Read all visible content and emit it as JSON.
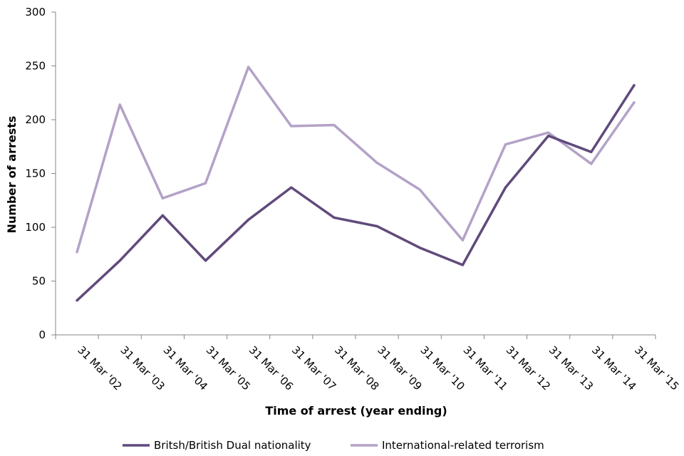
{
  "chart_data": {
    "type": "line",
    "title": "",
    "xlabel": "Time of arrest (year ending)",
    "ylabel": "Number of arrests",
    "ylim": [
      0,
      300
    ],
    "yticks": [
      0,
      50,
      100,
      150,
      200,
      250,
      300
    ],
    "grid": false,
    "legend_position": "bottom",
    "categories": [
      "31 Mar '02",
      "31 Mar '03",
      "31 Mar '04",
      "31 Mar '05",
      "31 Mar '06",
      "31 Mar '07",
      "31 Mar '08",
      "31 Mar '09",
      "31 Mar '10",
      "31 Mar '11",
      "31 Mar '12",
      "31 Mar '13",
      "31 Mar '14",
      "31 Mar '15"
    ],
    "series": [
      {
        "name": "Britsh/British Dual nationality",
        "color": "#604a7b",
        "values": [
          32,
          69,
          111,
          69,
          107,
          137,
          109,
          101,
          81,
          65,
          137,
          185,
          170,
          232
        ]
      },
      {
        "name": "International-related terrorism",
        "color": "#b3a2c7",
        "values": [
          77,
          214,
          127,
          141,
          249,
          194,
          195,
          160,
          135,
          88,
          177,
          188,
          159,
          216
        ]
      }
    ]
  }
}
